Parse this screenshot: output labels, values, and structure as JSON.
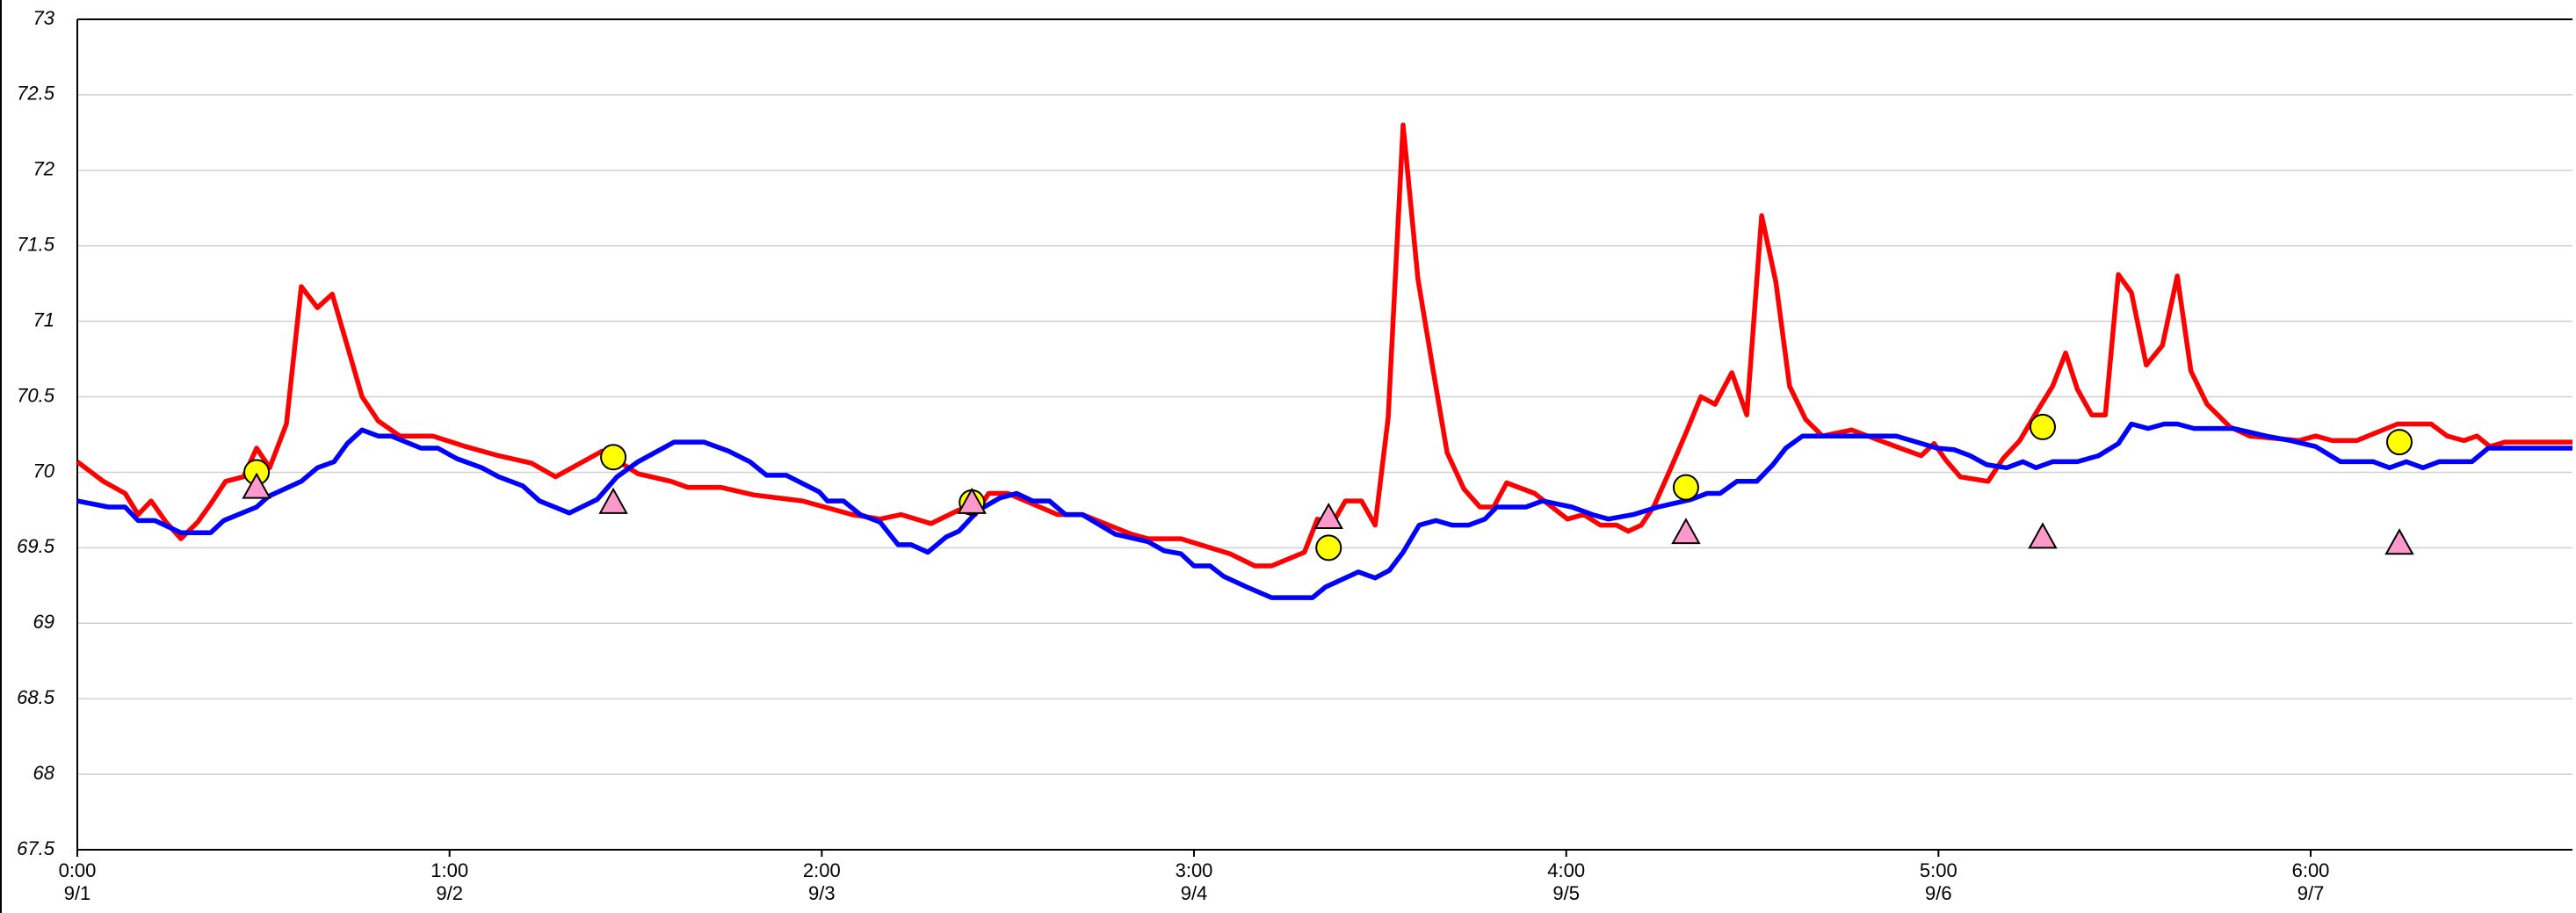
{
  "chart_data": {
    "type": "line",
    "xlim": [
      0,
      402.2
    ],
    "xticks": [
      {
        "value": 0,
        "label": "0:00"
      },
      {
        "value": 60,
        "label": "1:00"
      },
      {
        "value": 120,
        "label": "2:00"
      },
      {
        "value": 180,
        "label": "3:00"
      },
      {
        "value": 240,
        "label": "4:00"
      },
      {
        "value": 300,
        "label": "5:00"
      },
      {
        "value": 360,
        "label": "6:00"
      }
    ],
    "xtick_sublabels": [
      "9/1",
      "9/2",
      "9/3",
      "9/4",
      "9/5",
      "9/6",
      "9/7"
    ],
    "ylim": [
      67.5,
      73
    ],
    "yticks": [
      67.5,
      68,
      68.5,
      69,
      69.5,
      70,
      70.5,
      71,
      71.5,
      72,
      72.5,
      73
    ],
    "grid": true,
    "series": [
      {
        "color": "#ff0000",
        "marker": "none",
        "x": [
          0,
          4.2,
          7.7,
          9.8,
          11.9,
          14.3,
          16.7,
          19.4,
          21.5,
          23.9,
          26.8,
          28.9,
          31.0,
          33.7,
          36.1,
          38.7,
          41.1,
          45.9,
          48.5,
          52.0,
          57.3,
          62.6,
          67.9,
          73.2,
          77.1,
          84.6,
          90.4,
          95.7,
          98.4,
          103.7,
          109.0,
          116.9,
          124.9,
          129.4,
          132.8,
          137.6,
          142.1,
          144.7,
          146.9,
          150.0,
          158.0,
          162.0,
          169.9,
          172.6,
          177.9,
          185.8,
          189.8,
          192.5,
          197.8,
          199.9,
          202.3,
          204.4,
          207.0,
          209.2,
          211.3,
          213.7,
          216.1,
          218.4,
          220.8,
          223.5,
          226.1,
          228.3,
          230.4,
          234.9,
          240.2,
          242.8,
          245.5,
          248.1,
          250.0,
          252.1,
          254.2,
          256.9,
          259.5,
          261.7,
          264.0,
          266.7,
          269.1,
          271.5,
          273.8,
          276.0,
          278.6,
          281.3,
          286.0,
          294.5,
          297.2,
          299.3,
          301.2,
          303.5,
          308.0,
          310.4,
          313.1,
          315.7,
          318.4,
          320.5,
          322.4,
          324.7,
          326.9,
          329.0,
          331.1,
          333.5,
          336.1,
          338.5,
          340.7,
          343.3,
          347.0,
          350.2,
          358.1,
          360.8,
          363.5,
          367.4,
          374.0,
          379.4,
          382.0,
          384.7,
          386.8,
          388.9,
          391.3,
          402.2
        ],
        "values": [
          70.07,
          69.94,
          69.86,
          69.72,
          69.81,
          69.67,
          69.56,
          69.67,
          69.79,
          69.94,
          69.97,
          70.16,
          70.03,
          70.32,
          71.23,
          71.09,
          71.18,
          70.5,
          70.34,
          70.24,
          70.24,
          70.17,
          70.11,
          70.06,
          69.97,
          70.14,
          69.99,
          69.94,
          69.9,
          69.9,
          69.85,
          69.81,
          69.72,
          69.69,
          69.72,
          69.66,
          69.75,
          69.72,
          69.86,
          69.86,
          69.72,
          69.72,
          69.59,
          69.56,
          69.56,
          69.46,
          69.38,
          69.38,
          69.47,
          69.69,
          69.66,
          69.81,
          69.81,
          69.65,
          70.36,
          72.3,
          71.28,
          70.71,
          70.13,
          69.89,
          69.77,
          69.77,
          69.93,
          69.86,
          69.69,
          69.72,
          69.65,
          69.65,
          69.61,
          69.65,
          69.78,
          70.03,
          70.28,
          70.5,
          70.45,
          70.66,
          70.38,
          71.7,
          71.26,
          70.57,
          70.35,
          70.24,
          70.28,
          70.15,
          70.11,
          70.19,
          70.08,
          69.97,
          69.94,
          70.09,
          70.21,
          70.39,
          70.57,
          70.79,
          70.55,
          70.38,
          70.38,
          71.31,
          71.19,
          70.71,
          70.84,
          71.3,
          70.67,
          70.45,
          70.3,
          70.24,
          70.21,
          70.24,
          70.21,
          70.21,
          70.32,
          70.32,
          70.24,
          70.21,
          70.24,
          70.17,
          70.2,
          70.2
        ]
      },
      {
        "color": "#0000ff",
        "marker": "none",
        "x": [
          0,
          5.0,
          7.7,
          9.8,
          12.5,
          16.7,
          21.5,
          23.6,
          28.9,
          30.8,
          36.1,
          38.7,
          41.4,
          43.5,
          45.9,
          48.5,
          50.6,
          55.4,
          58.1,
          61.2,
          65.2,
          67.9,
          71.8,
          74.5,
          79.3,
          83.8,
          87.0,
          90.4,
          96.2,
          101.0,
          105.0,
          108.4,
          111.1,
          114.3,
          119.6,
          120.9,
          123.5,
          126.2,
          129.4,
          132.3,
          134.4,
          137.1,
          140.0,
          142.1,
          145.3,
          148.7,
          151.4,
          154.0,
          156.7,
          159.3,
          162.0,
          167.3,
          172.6,
          175.2,
          177.9,
          180.0,
          182.6,
          184.8,
          188.5,
          192.5,
          199.1,
          201.2,
          206.5,
          209.2,
          211.5,
          213.7,
          216.3,
          219.0,
          221.6,
          224.3,
          226.9,
          228.8,
          233.5,
          236.2,
          240.9,
          244.2,
          246.8,
          250.8,
          254.8,
          260.1,
          262.7,
          264.8,
          267.5,
          270.7,
          273.3,
          275.4,
          278.1,
          293.2,
          299.8,
          302.5,
          305.1,
          307.8,
          311.0,
          313.6,
          315.7,
          318.4,
          322.4,
          325.8,
          329.0,
          331.1,
          333.8,
          336.4,
          338.5,
          341.2,
          347.5,
          352.8,
          356.8,
          360.8,
          364.8,
          370.1,
          372.7,
          375.4,
          378.1,
          380.7,
          386.0,
          388.6,
          402.2
        ],
        "values": [
          69.81,
          69.77,
          69.77,
          69.68,
          69.68,
          69.6,
          69.6,
          69.68,
          69.77,
          69.84,
          69.94,
          70.03,
          70.07,
          70.19,
          70.28,
          70.24,
          70.24,
          70.16,
          70.16,
          70.09,
          70.03,
          69.97,
          69.91,
          69.81,
          69.73,
          69.82,
          69.97,
          70.07,
          70.2,
          70.2,
          70.14,
          70.07,
          69.98,
          69.98,
          69.87,
          69.81,
          69.81,
          69.72,
          69.67,
          69.52,
          69.52,
          69.47,
          69.57,
          69.61,
          69.75,
          69.83,
          69.86,
          69.81,
          69.81,
          69.72,
          69.72,
          69.59,
          69.54,
          69.48,
          69.46,
          69.38,
          69.38,
          69.31,
          69.24,
          69.17,
          69.17,
          69.24,
          69.34,
          69.3,
          69.35,
          69.47,
          69.65,
          69.68,
          69.65,
          69.65,
          69.69,
          69.77,
          69.77,
          69.81,
          69.77,
          69.72,
          69.69,
          69.72,
          69.77,
          69.82,
          69.86,
          69.86,
          69.94,
          69.94,
          70.05,
          70.16,
          70.24,
          70.24,
          70.16,
          70.15,
          70.11,
          70.05,
          70.03,
          70.07,
          70.03,
          70.07,
          70.07,
          70.11,
          70.19,
          70.32,
          70.29,
          70.32,
          70.32,
          70.29,
          70.29,
          70.24,
          70.21,
          70.17,
          70.07,
          70.07,
          70.03,
          70.07,
          70.03,
          70.07,
          70.07,
          70.16,
          70.16
        ]
      },
      {
        "color": "#ffff00",
        "marker": "circle",
        "x": [
          28.9,
          86.4,
          144.2,
          201.7,
          259.3,
          316.8,
          374.3
        ],
        "values": [
          70.0,
          70.1,
          69.8,
          69.5,
          69.9,
          70.3,
          70.2
        ]
      },
      {
        "color": "#ff99cc",
        "marker": "triangle",
        "x": [
          28.9,
          86.4,
          144.2,
          201.7,
          259.3,
          316.8,
          374.3
        ],
        "values": [
          69.9,
          69.8,
          69.8,
          69.7,
          69.6,
          69.57,
          69.53
        ]
      }
    ]
  }
}
